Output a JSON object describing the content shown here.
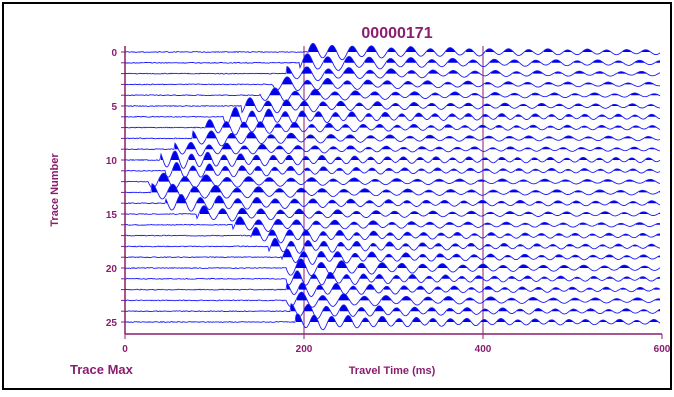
{
  "chart_data": {
    "type": "line",
    "title": "00000171",
    "xlabel": "Travel Time (ms)",
    "ylabel": "Trace Number",
    "footer_left": "Trace Max",
    "xlim": [
      0,
      600
    ],
    "ylim": [
      0,
      25.5
    ],
    "x_ticks": [
      "0",
      "200",
      "400",
      "600"
    ],
    "y_ticks": [
      "0",
      "5",
      "10",
      "15",
      "20",
      "25"
    ],
    "grid_x": [
      200,
      400
    ],
    "trace_count": 26,
    "first_break_ms": [
      205,
      195,
      180,
      165,
      150,
      130,
      110,
      90,
      75,
      55,
      40,
      45,
      25,
      30,
      45,
      80,
      120,
      140,
      160,
      175,
      180,
      180,
      180,
      180,
      185,
      190
    ],
    "colors": {
      "trace": "#1a1aff",
      "fill": "#0000e6",
      "axis": "#8a1e6e",
      "title": "#8a1e6e",
      "labels": "#8a1e6e"
    }
  }
}
